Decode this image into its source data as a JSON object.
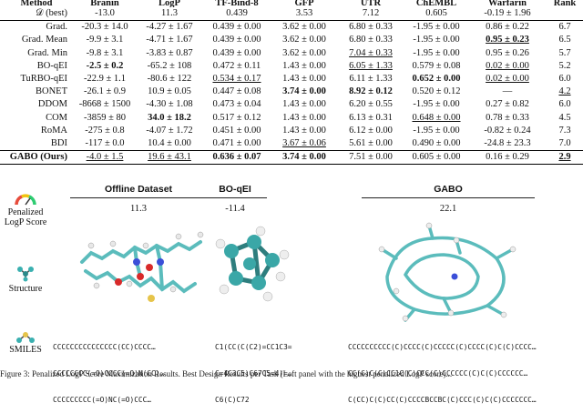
{
  "table": {
    "headers": [
      "Method",
      "Branin",
      "LogP",
      "TF-Bind-8",
      "GFP",
      "UTR",
      "ChEMBL",
      "Warfarin",
      "Rank"
    ],
    "best_row": {
      "label": "𝒟 (best)",
      "values": [
        "-13.0",
        "11.3",
        "0.439",
        "3.53",
        "7.12",
        "0.605",
        "-0.19 ± 1.96",
        ""
      ]
    },
    "rows": [
      {
        "method": "Grad.",
        "values": [
          "-20.3 ± 14.0",
          "-4.27 ± 1.67",
          "0.439 ± 0.00",
          "3.62 ± 0.00",
          "6.80 ± 0.33",
          "-1.95 ± 0.00",
          "0.86 ± 0.22",
          "6.7"
        ]
      },
      {
        "method": "Grad. Mean",
        "values": [
          "-9.9 ± 3.1",
          "-4.71 ± 1.67",
          "0.439 ± 0.00",
          "3.62 ± 0.00",
          "6.80 ± 0.33",
          "-1.95 ± 0.00",
          "0.95 ± 0.23",
          "6.5"
        ]
      },
      {
        "method": "Grad. Min",
        "values": [
          "-9.8 ± 3.1",
          "-3.83 ± 0.87",
          "0.439 ± 0.00",
          "3.62 ± 0.00",
          "7.04 ± 0.33",
          "-1.95 ± 0.00",
          "0.95 ± 0.26",
          "5.7"
        ]
      },
      {
        "method": "BO-qEI",
        "values": [
          "-2.5 ± 0.2",
          "-65.2 ± 108",
          "0.472 ± 0.11",
          "1.43 ± 0.00",
          "6.05 ± 1.33",
          "0.579 ± 0.08",
          "0.02 ± 0.00",
          "5.2"
        ]
      },
      {
        "method": "TuRBO-qEI",
        "values": [
          "-22.9 ± 1.1",
          "-80.6 ± 122",
          "0.534 ± 0.17",
          "1.43 ± 0.00",
          "6.11 ± 1.33",
          "0.652 ± 0.00",
          "0.02 ± 0.00",
          "6.0"
        ]
      },
      {
        "method": "BONET",
        "values": [
          "-26.1 ± 0.9",
          "10.9 ± 0.05",
          "0.447 ± 0.08",
          "3.74 ± 0.00",
          "8.92 ± 0.12",
          "0.520 ± 0.12",
          "—",
          "4.2"
        ]
      },
      {
        "method": "DDOM",
        "values": [
          "-8668 ± 1500",
          "-4.30 ± 1.08",
          "0.473 ± 0.04",
          "1.43 ± 0.00",
          "6.20 ± 0.55",
          "-1.95 ± 0.00",
          "0.27 ± 0.82",
          "6.0"
        ]
      },
      {
        "method": "COM",
        "values": [
          "-3859 ± 80",
          "34.0 ± 18.2",
          "0.517 ± 0.12",
          "1.43 ± 0.00",
          "6.13 ± 0.31",
          "0.648 ± 0.00",
          "0.78 ± 0.33",
          "4.5"
        ]
      },
      {
        "method": "RoMA",
        "values": [
          "-275 ± 0.8",
          "-4.07 ± 1.72",
          "0.451 ± 0.00",
          "1.43 ± 0.00",
          "6.12 ± 0.00",
          "-1.95 ± 0.00",
          "-0.82 ± 0.24",
          "7.3"
        ]
      },
      {
        "method": "BDI",
        "values": [
          "-117 ± 0.0",
          "10.4 ± 0.00",
          "0.471 ± 0.00",
          "3.67 ± 0.06",
          "5.61 ± 0.00",
          "0.490 ± 0.00",
          "-24.8 ± 23.3",
          "7.0"
        ]
      },
      {
        "method": "GABO (Ours)",
        "values": [
          "-4.0 ± 1.5",
          "19.6 ± 43.1",
          "0.636 ± 0.07",
          "3.74 ± 0.00",
          "7.51 ± 0.00",
          "0.605 ± 0.00",
          "0.16 ± 0.29",
          "2.9"
        ]
      }
    ]
  },
  "molecules": {
    "label_score": "Penalized LogP Score",
    "label_structure": "Structure",
    "label_smiles": "SMILES",
    "panels": [
      {
        "title": "Offline Dataset",
        "score": "11.3",
        "smiles": [
          "CCCCCCCCCCCCCCC(CC)CCCC…",
          "CCCCCCCC(=O)CCCC(=O)N(CC)…",
          "CCCCCCCCC(=O)NC(=O)CCC…"
        ]
      },
      {
        "title": "BO-qEI",
        "score": "-11.4",
        "smiles": [
          "C1(CC(C(C2)=CC1C3=",
          "C=4C3C5)C67C5=4)=…",
          "C6(C)C72"
        ]
      },
      {
        "title": "GABO",
        "score": "22.1",
        "smiles": [
          "CCCCCCCCCC(C)CCCC(C)CCCCC(C)CCCC(C)C(C)CCCC…",
          "CC(C)C(C)CC1C(C)CCC(C)CCCCCC(C)C(C)CCCCCC…",
          "C(CC)C(C)CC(C)CCCCBCCBC(C)CCC(C)C(C)CCCCCCC…"
        ]
      }
    ]
  },
  "caption": "Figure 3: Penalized LogP Score Maximization Results. Best Design Results per Task (Left panel with the highest penalized LogP score)..."
}
